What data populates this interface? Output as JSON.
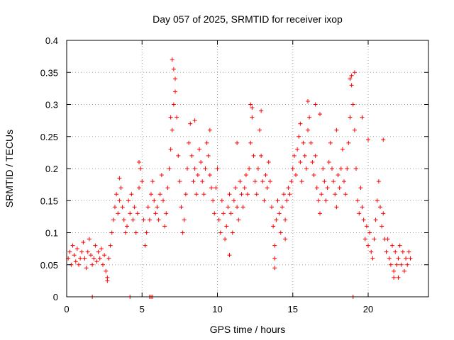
{
  "chart_data": {
    "type": "scatter",
    "title": "Day 057 of 2025, SRMTID for receiver ixop",
    "xlabel": "GPS time / hours",
    "ylabel": "SRMTID / TECUs",
    "xlim": [
      0,
      24
    ],
    "ylim": [
      0,
      0.4
    ],
    "x_ticks": [
      0,
      5,
      10,
      15,
      20
    ],
    "x_tick_labels": [
      "0",
      "5",
      "10",
      "15",
      "20"
    ],
    "y_ticks": [
      0,
      0.05,
      0.1,
      0.15,
      0.2,
      0.25,
      0.3,
      0.35,
      0.4
    ],
    "y_tick_labels": [
      "0",
      "0.05",
      "0.1",
      "0.15",
      "0.2",
      "0.25",
      "0.3",
      "0.35",
      "0.4"
    ],
    "grid": true,
    "marker": "+",
    "color": "#ff0000",
    "series": [
      {
        "name": "SRMTID",
        "points": [
          [
            0.1,
            0.06
          ],
          [
            0.2,
            0.07
          ],
          [
            0.3,
            0.05
          ],
          [
            0.4,
            0.08
          ],
          [
            0.5,
            0.065
          ],
          [
            0.6,
            0.055
          ],
          [
            0.7,
            0.075
          ],
          [
            0.8,
            0.05
          ],
          [
            0.9,
            0.06
          ],
          [
            1.0,
            0.07
          ],
          [
            1.1,
            0.085
          ],
          [
            1.2,
            0.06
          ],
          [
            1.3,
            0.045
          ],
          [
            1.4,
            0.07
          ],
          [
            1.5,
            0.09
          ],
          [
            1.6,
            0.065
          ],
          [
            1.7,
            0.05
          ],
          [
            1.8,
            0.06
          ],
          [
            1.9,
            0.08
          ],
          [
            2.0,
            0.055
          ],
          [
            2.1,
            0.07
          ],
          [
            2.2,
            0.06
          ],
          [
            2.3,
            0.075
          ],
          [
            2.4,
            0.05
          ],
          [
            2.5,
            0.065
          ],
          [
            2.6,
            0.04
          ],
          [
            2.7,
            0.03
          ],
          [
            2.8,
            0.06
          ],
          [
            2.9,
            0.08
          ],
          [
            3.0,
            0.1
          ],
          [
            3.1,
            0.12
          ],
          [
            3.2,
            0.14
          ],
          [
            3.3,
            0.16
          ],
          [
            3.4,
            0.13
          ],
          [
            3.5,
            0.15
          ],
          [
            3.6,
            0.17
          ],
          [
            3.7,
            0.14
          ],
          [
            3.8,
            0.12
          ],
          [
            3.9,
            0.1
          ],
          [
            4.0,
            0.11
          ],
          [
            4.1,
            0.15
          ],
          [
            4.2,
            0.13
          ],
          [
            4.3,
            0.16
          ],
          [
            4.4,
            0.12
          ],
          [
            4.5,
            0.14
          ],
          [
            4.6,
            0.1
          ],
          [
            4.7,
            0.13
          ],
          [
            4.8,
            0.17
          ],
          [
            4.9,
            0.2
          ],
          [
            5.0,
            0.18
          ],
          [
            5.1,
            0.12
          ],
          [
            5.2,
            0.08
          ],
          [
            5.3,
            0.1
          ],
          [
            5.4,
            0.14
          ],
          [
            5.5,
            0.12
          ],
          [
            5.6,
            0.16
          ],
          [
            5.7,
            0.18
          ],
          [
            5.8,
            0.15
          ],
          [
            5.9,
            0.13
          ],
          [
            6.0,
            0.14
          ],
          [
            6.1,
            0.12
          ],
          [
            6.2,
            0.16
          ],
          [
            6.3,
            0.19
          ],
          [
            6.4,
            0.15
          ],
          [
            6.5,
            0.11
          ],
          [
            6.6,
            0.13
          ],
          [
            6.7,
            0.17
          ],
          [
            6.8,
            0.2
          ],
          [
            6.9,
            0.23
          ],
          [
            7.0,
            0.26
          ],
          [
            7.1,
            0.3
          ],
          [
            7.2,
            0.34
          ],
          [
            7.3,
            0.28
          ],
          [
            7.4,
            0.22
          ],
          [
            7.5,
            0.18
          ],
          [
            7.6,
            0.14
          ],
          [
            7.7,
            0.1
          ],
          [
            7.8,
            0.12
          ],
          [
            7.9,
            0.16
          ],
          [
            8.0,
            0.2
          ],
          [
            8.1,
            0.24
          ],
          [
            8.2,
            0.27
          ],
          [
            8.3,
            0.22
          ],
          [
            8.4,
            0.18
          ],
          [
            8.5,
            0.2
          ],
          [
            8.6,
            0.16
          ],
          [
            8.7,
            0.19
          ],
          [
            8.8,
            0.23
          ],
          [
            8.9,
            0.21
          ],
          [
            9.0,
            0.18
          ],
          [
            9.1,
            0.16
          ],
          [
            9.2,
            0.2
          ],
          [
            9.3,
            0.24
          ],
          [
            9.4,
            0.22
          ],
          [
            9.5,
            0.19
          ],
          [
            9.6,
            0.17
          ],
          [
            9.7,
            0.15
          ],
          [
            9.8,
            0.13
          ],
          [
            9.9,
            0.17
          ],
          [
            10.0,
            0.2
          ],
          [
            10.1,
            0.12
          ],
          [
            10.2,
            0.1
          ],
          [
            10.3,
            0.15
          ],
          [
            10.4,
            0.13
          ],
          [
            10.5,
            0.09
          ],
          [
            10.6,
            0.11
          ],
          [
            10.7,
            0.14
          ],
          [
            10.8,
            0.16
          ],
          [
            10.9,
            0.13
          ],
          [
            11.0,
            0.1
          ],
          [
            11.1,
            0.15
          ],
          [
            11.2,
            0.17
          ],
          [
            11.3,
            0.14
          ],
          [
            11.4,
            0.12
          ],
          [
            11.5,
            0.18
          ],
          [
            11.6,
            0.16
          ],
          [
            11.7,
            0.14
          ],
          [
            11.8,
            0.17
          ],
          [
            11.9,
            0.19
          ],
          [
            12.0,
            0.16
          ],
          [
            12.1,
            0.2
          ],
          [
            12.2,
            0.24
          ],
          [
            12.3,
            0.28
          ],
          [
            12.4,
            0.22
          ],
          [
            12.5,
            0.18
          ],
          [
            12.6,
            0.16
          ],
          [
            12.7,
            0.2
          ],
          [
            12.8,
            0.26
          ],
          [
            12.9,
            0.22
          ],
          [
            13.0,
            0.18
          ],
          [
            13.1,
            0.15
          ],
          [
            13.2,
            0.19
          ],
          [
            13.3,
            0.17
          ],
          [
            13.4,
            0.21
          ],
          [
            13.5,
            0.18
          ],
          [
            13.6,
            0.14
          ],
          [
            13.7,
            0.11
          ],
          [
            13.8,
            0.08
          ],
          [
            13.9,
            0.12
          ],
          [
            14.0,
            0.15
          ],
          [
            14.1,
            0.13
          ],
          [
            14.2,
            0.1
          ],
          [
            14.3,
            0.14
          ],
          [
            14.4,
            0.16
          ],
          [
            14.5,
            0.12
          ],
          [
            14.6,
            0.15
          ],
          [
            14.7,
            0.17
          ],
          [
            14.8,
            0.16
          ],
          [
            14.9,
            0.18
          ],
          [
            15.0,
            0.2
          ],
          [
            15.1,
            0.22
          ],
          [
            15.2,
            0.19
          ],
          [
            15.3,
            0.23
          ],
          [
            15.4,
            0.25
          ],
          [
            15.5,
            0.21
          ],
          [
            15.6,
            0.18
          ],
          [
            15.7,
            0.24
          ],
          [
            15.8,
            0.22
          ],
          [
            15.9,
            0.2
          ],
          [
            16.0,
            0.26
          ],
          [
            16.1,
            0.28
          ],
          [
            16.2,
            0.24
          ],
          [
            16.3,
            0.21
          ],
          [
            16.4,
            0.19
          ],
          [
            16.5,
            0.22
          ],
          [
            16.6,
            0.17
          ],
          [
            16.7,
            0.15
          ],
          [
            16.8,
            0.13
          ],
          [
            16.9,
            0.16
          ],
          [
            17.0,
            0.2
          ],
          [
            17.1,
            0.18
          ],
          [
            17.2,
            0.15
          ],
          [
            17.3,
            0.17
          ],
          [
            17.4,
            0.21
          ],
          [
            17.5,
            0.24
          ],
          [
            17.6,
            0.2
          ],
          [
            17.7,
            0.18
          ],
          [
            17.8,
            0.16
          ],
          [
            17.9,
            0.14
          ],
          [
            18.0,
            0.19
          ],
          [
            18.1,
            0.17
          ],
          [
            18.2,
            0.2
          ],
          [
            18.3,
            0.23
          ],
          [
            18.4,
            0.18
          ],
          [
            18.5,
            0.16
          ],
          [
            18.6,
            0.2
          ],
          [
            18.7,
            0.24
          ],
          [
            18.8,
            0.28
          ],
          [
            18.9,
            0.33
          ],
          [
            19.0,
            0.3
          ],
          [
            19.1,
            0.26
          ],
          [
            19.2,
            0.2
          ],
          [
            19.3,
            0.15
          ],
          [
            19.4,
            0.13
          ],
          [
            19.5,
            0.17
          ],
          [
            19.6,
            0.14
          ],
          [
            19.7,
            0.12
          ],
          [
            19.8,
            0.09
          ],
          [
            19.9,
            0.11
          ],
          [
            20.0,
            0.08
          ],
          [
            20.1,
            0.1
          ],
          [
            20.2,
            0.07
          ],
          [
            20.3,
            0.06
          ],
          [
            20.4,
            0.09
          ],
          [
            20.5,
            0.12
          ],
          [
            20.6,
            0.15
          ],
          [
            20.7,
            0.18
          ],
          [
            20.8,
            0.14
          ],
          [
            20.9,
            0.11
          ],
          [
            21.0,
            0.13
          ],
          [
            21.1,
            0.09
          ],
          [
            21.2,
            0.07
          ],
          [
            21.3,
            0.09
          ],
          [
            21.4,
            0.06
          ],
          [
            21.5,
            0.05
          ],
          [
            21.6,
            0.08
          ],
          [
            21.7,
            0.04
          ],
          [
            21.8,
            0.07
          ],
          [
            21.9,
            0.05
          ],
          [
            22.0,
            0.06
          ],
          [
            22.1,
            0.08
          ],
          [
            22.2,
            0.05
          ],
          [
            22.3,
            0.07
          ],
          [
            22.4,
            0.04
          ],
          [
            22.5,
            0.06
          ],
          [
            22.6,
            0.05
          ],
          [
            22.7,
            0.07
          ],
          [
            22.8,
            0.06
          ],
          [
            7.0,
            0.37
          ],
          [
            7.1,
            0.355
          ],
          [
            18.8,
            0.34
          ],
          [
            18.9,
            0.345
          ],
          [
            19.1,
            0.35
          ],
          [
            12.2,
            0.3
          ],
          [
            12.3,
            0.295
          ],
          [
            12.9,
            0.29
          ],
          [
            16.0,
            0.305
          ],
          [
            16.8,
            0.285
          ],
          [
            7.2,
            0.32
          ],
          [
            8.5,
            0.275
          ],
          [
            9.5,
            0.26
          ],
          [
            13.8,
            0.06
          ],
          [
            13.8,
            0.045
          ],
          [
            10.8,
            0.065
          ],
          [
            2.7,
            0.025
          ],
          [
            21.7,
            0.03
          ],
          [
            22.0,
            0.03
          ],
          [
            19.6,
            0.28
          ],
          [
            20.0,
            0.245
          ],
          [
            21.0,
            0.245
          ],
          [
            4.8,
            0.21
          ],
          [
            3.5,
            0.185
          ],
          [
            6.9,
            0.28
          ],
          [
            11.3,
            0.24
          ],
          [
            14.5,
            0.09
          ],
          [
            15.5,
            0.27
          ],
          [
            16.5,
            0.3
          ],
          [
            17.9,
            0.26
          ],
          [
            1.7,
            0.0
          ],
          [
            4.2,
            0.0
          ],
          [
            5.5,
            0.0
          ],
          [
            5.6,
            0.0
          ],
          [
            5.7,
            0.0
          ],
          [
            19.0,
            0.0
          ]
        ]
      }
    ]
  }
}
